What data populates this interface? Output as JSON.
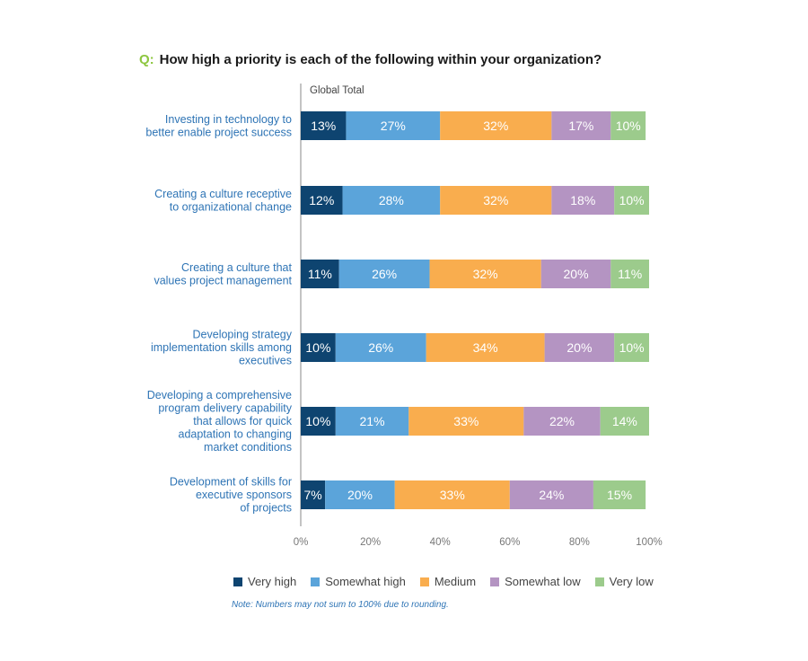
{
  "question": {
    "prefix": "Q:",
    "text": "How high a priority is each of the following within your organization?"
  },
  "note": "Note: Numbers may not sum to 100% due to rounding.",
  "chart_data": {
    "type": "bar",
    "orientation": "horizontal",
    "stacked": true,
    "axis_title": "Global Total",
    "xlim": [
      0,
      100
    ],
    "x_ticks": [
      "0%",
      "20%",
      "40%",
      "60%",
      "80%",
      "100%"
    ],
    "legend_position": "bottom",
    "categories": [
      [
        "Investing in technology to",
        "better enable project success"
      ],
      [
        "Creating a culture receptive",
        "to organizational change"
      ],
      [
        "Creating a culture that",
        "values project management"
      ],
      [
        "Developing strategy",
        "implementation skills among",
        "executives"
      ],
      [
        "Developing a comprehensive",
        "program delivery capability",
        "that allows for quick",
        "adaptation to changing",
        "market conditions"
      ],
      [
        "Development of skills for",
        "executive sponsors",
        "of projects"
      ]
    ],
    "series": [
      {
        "name": "Very high",
        "color": "#0e4470",
        "values": [
          13,
          12,
          11,
          10,
          10,
          7
        ]
      },
      {
        "name": "Somewhat high",
        "color": "#5ba4da",
        "values": [
          27,
          28,
          26,
          26,
          21,
          20
        ]
      },
      {
        "name": "Medium",
        "color": "#f9ad4e",
        "values": [
          32,
          32,
          32,
          34,
          33,
          33
        ]
      },
      {
        "name": "Somewhat low",
        "color": "#b494c2",
        "values": [
          17,
          18,
          20,
          20,
          22,
          24
        ]
      },
      {
        "name": "Very low",
        "color": "#9ccb8c",
        "values": [
          10,
          10,
          11,
          10,
          14,
          15
        ]
      }
    ]
  }
}
